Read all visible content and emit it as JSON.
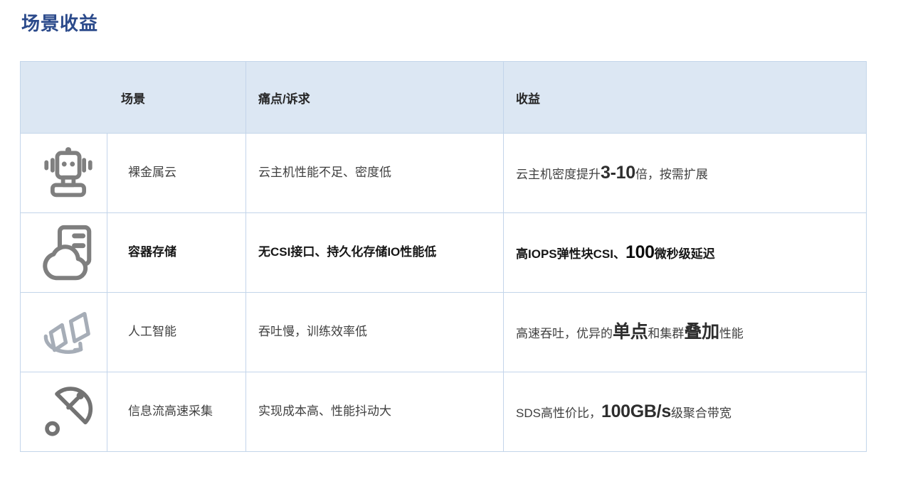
{
  "page": {
    "title": "场景收益"
  },
  "colors": {
    "title": "#2b4a8b",
    "header_background": "#dce7f3",
    "table_border": "#c3d5ea",
    "body_text": "#404040",
    "icon_gray": "#7f7f7f",
    "icon_light_gray": "#a6adb7",
    "icon_dark_gray": "#737373"
  },
  "table": {
    "headers": {
      "scene": "场景",
      "pain": "痛点/诉求",
      "benefit": "收益"
    },
    "rows": [
      {
        "icon": "robot-icon",
        "scene": "裸金属云",
        "pain": "云主机性能不足、密度低",
        "emphasized": false,
        "benefit": [
          {
            "text": "云主机密度提升",
            "em": false
          },
          {
            "text": "3-10",
            "em": true
          },
          {
            "text": "倍，按需扩展",
            "em": false
          }
        ]
      },
      {
        "icon": "cloud-server-icon",
        "scene": "容器存储",
        "pain": "无CSI接口、持久化存储IO性能低",
        "emphasized": true,
        "benefit": [
          {
            "text": "高IOPS弹性块CSI、",
            "em": false
          },
          {
            "text": "100",
            "em": true
          },
          {
            "text": "微秒级延迟",
            "em": false
          }
        ]
      },
      {
        "icon": "ai-sync-icon",
        "scene": "人工智能",
        "pain": "吞吐慢，训练效率低",
        "emphasized": false,
        "benefit": [
          {
            "text": "高速吞吐，优异的",
            "em": false
          },
          {
            "text": "单点",
            "em": true
          },
          {
            "text": "和集群",
            "em": false
          },
          {
            "text": "叠加",
            "em": true
          },
          {
            "text": "性能",
            "em": false
          }
        ]
      },
      {
        "icon": "satellite-dish-icon",
        "scene": "信息流高速采集",
        "pain": "实现成本高、性能抖动大",
        "emphasized": false,
        "benefit": [
          {
            "text": "SDS高性价比，",
            "em": false
          },
          {
            "text": "100GB/s",
            "em": true
          },
          {
            "text": "级聚合带宽",
            "em": false
          }
        ]
      }
    ]
  }
}
